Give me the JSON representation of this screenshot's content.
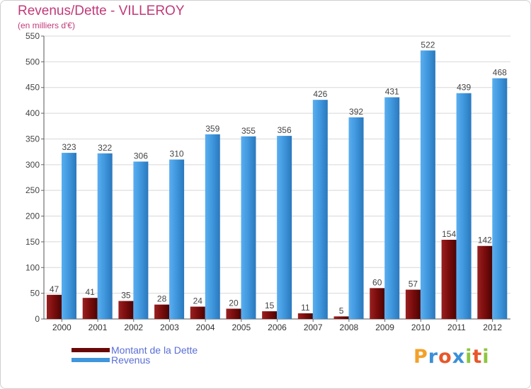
{
  "chart_data": {
    "type": "bar",
    "title": "Revenus/Dette - VILLEROY",
    "subtitle": "(en milliers d'€)",
    "categories": [
      "2000",
      "2001",
      "2002",
      "2003",
      "2004",
      "2005",
      "2006",
      "2007",
      "2008",
      "2009",
      "2010",
      "2011",
      "2012"
    ],
    "series": [
      {
        "name": "Montant de la Dette",
        "values": [
          47,
          41,
          35,
          28,
          24,
          20,
          15,
          11,
          5,
          60,
          57,
          154,
          142
        ],
        "color": "#7a0c0c"
      },
      {
        "name": "Revenus",
        "values": [
          323,
          322,
          306,
          310,
          359,
          355,
          356,
          426,
          392,
          431,
          522,
          439,
          468
        ],
        "color": "#3f96dc"
      }
    ],
    "ylim": [
      0,
      550
    ],
    "yticks": [
      0,
      50,
      100,
      150,
      200,
      250,
      300,
      350,
      400,
      450,
      500,
      550
    ],
    "grid": true,
    "legend_position": "bottom-left"
  },
  "logo": {
    "text": "Proxiti"
  }
}
